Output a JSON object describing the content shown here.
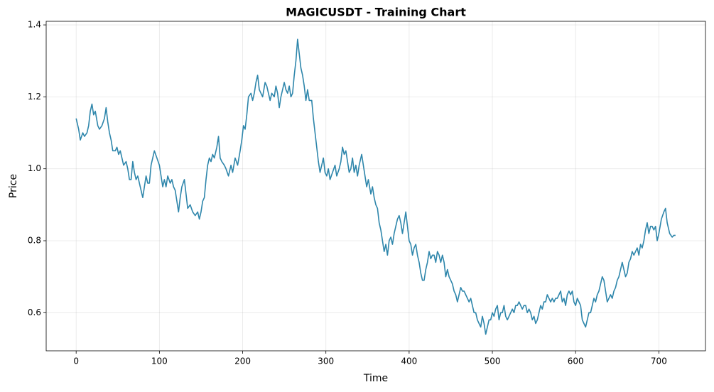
{
  "chart_data": {
    "type": "line",
    "title": "MAGICUSDT - Training Chart",
    "x_label": "Time",
    "y_label": "Price",
    "grid": true,
    "xlim": [
      -36,
      756
    ],
    "ylim": [
      0.494,
      1.41
    ],
    "xticks": [
      0,
      100,
      200,
      300,
      400,
      500,
      600,
      700
    ],
    "yticks": [
      0.6,
      0.8,
      {
        "value": 1.0,
        "label": "1.0"
      },
      1.2,
      1.4
    ],
    "x": [
      0,
      3,
      5,
      8,
      10,
      13,
      15,
      17,
      19,
      21,
      23,
      26,
      28,
      31,
      34,
      36,
      38,
      40,
      42,
      44,
      47,
      49,
      51,
      53,
      55,
      57,
      60,
      62,
      64,
      66,
      68,
      70,
      72,
      74,
      77,
      80,
      82,
      84,
      86,
      88,
      90,
      92,
      94,
      97,
      100,
      102,
      104,
      106,
      108,
      110,
      113,
      115,
      117,
      119,
      121,
      123,
      125,
      127,
      130,
      132,
      134,
      137,
      140,
      143,
      146,
      148,
      150,
      152,
      154,
      156,
      158,
      160,
      162,
      164,
      166,
      169,
      171,
      173,
      175,
      178,
      180,
      183,
      186,
      188,
      191,
      194,
      197,
      199,
      201,
      203,
      205,
      207,
      210,
      212,
      214,
      216,
      218,
      220,
      222,
      224,
      227,
      229,
      231,
      233,
      235,
      238,
      240,
      242,
      244,
      246,
      248,
      250,
      252,
      254,
      256,
      258,
      260,
      262,
      264,
      266,
      268,
      270,
      272,
      274,
      276,
      278,
      280,
      283,
      285,
      287,
      289,
      291,
      293,
      295,
      297,
      299,
      301,
      303,
      305,
      308,
      311,
      313,
      316,
      318,
      320,
      322,
      324,
      326,
      328,
      330,
      332,
      334,
      336,
      338,
      340,
      343,
      345,
      347,
      349,
      351,
      354,
      356,
      358,
      360,
      362,
      364,
      366,
      368,
      370,
      372,
      374,
      376,
      378,
      380,
      382,
      384,
      386,
      388,
      390,
      392,
      394,
      396,
      398,
      400,
      402,
      404,
      406,
      408,
      410,
      412,
      414,
      416,
      418,
      420,
      422,
      424,
      426,
      428,
      430,
      432,
      434,
      436,
      438,
      440,
      442,
      444,
      446,
      448,
      450,
      452,
      454,
      456,
      458,
      460,
      462,
      464,
      466,
      468,
      470,
      472,
      474,
      476,
      478,
      480,
      482,
      484,
      486,
      488,
      490,
      492,
      494,
      496,
      498,
      500,
      502,
      504,
      506,
      508,
      510,
      512,
      514,
      516,
      518,
      520,
      522,
      524,
      526,
      528,
      530,
      532,
      534,
      536,
      538,
      540,
      542,
      544,
      546,
      548,
      550,
      552,
      554,
      556,
      558,
      560,
      562,
      564,
      566,
      568,
      570,
      572,
      574,
      576,
      578,
      580,
      582,
      584,
      586,
      588,
      590,
      592,
      594,
      596,
      598,
      600,
      602,
      604,
      606,
      608,
      610,
      612,
      614,
      616,
      618,
      620,
      622,
      624,
      626,
      628,
      630,
      632,
      634,
      636,
      638,
      640,
      642,
      644,
      646,
      648,
      650,
      652,
      654,
      656,
      658,
      660,
      662,
      664,
      666,
      668,
      670,
      672,
      674,
      676,
      678,
      680,
      682,
      684,
      686,
      688,
      690,
      692,
      694,
      696,
      698,
      700,
      703,
      706,
      708,
      710,
      713,
      716,
      718,
      720
    ],
    "series": [
      {
        "color": "#2e86ab",
        "values": [
          1.14,
          1.11,
          1.08,
          1.1,
          1.09,
          1.1,
          1.12,
          1.16,
          1.18,
          1.15,
          1.16,
          1.12,
          1.11,
          1.12,
          1.14,
          1.17,
          1.13,
          1.1,
          1.08,
          1.05,
          1.05,
          1.06,
          1.04,
          1.05,
          1.03,
          1.01,
          1.02,
          1.0,
          0.97,
          0.97,
          1.02,
          0.99,
          0.97,
          0.98,
          0.95,
          0.92,
          0.95,
          0.98,
          0.96,
          0.96,
          1.01,
          1.03,
          1.05,
          1.03,
          1.01,
          0.98,
          0.95,
          0.97,
          0.95,
          0.98,
          0.96,
          0.97,
          0.95,
          0.94,
          0.91,
          0.88,
          0.92,
          0.95,
          0.97,
          0.93,
          0.89,
          0.9,
          0.88,
          0.87,
          0.88,
          0.86,
          0.88,
          0.91,
          0.92,
          0.97,
          1.01,
          1.03,
          1.02,
          1.04,
          1.03,
          1.06,
          1.09,
          1.03,
          1.02,
          1.01,
          1.0,
          0.98,
          1.01,
          0.99,
          1.03,
          1.01,
          1.05,
          1.08,
          1.12,
          1.11,
          1.15,
          1.2,
          1.21,
          1.19,
          1.21,
          1.24,
          1.26,
          1.22,
          1.21,
          1.2,
          1.24,
          1.23,
          1.21,
          1.19,
          1.21,
          1.2,
          1.23,
          1.21,
          1.17,
          1.2,
          1.22,
          1.24,
          1.22,
          1.21,
          1.23,
          1.2,
          1.21,
          1.26,
          1.3,
          1.36,
          1.32,
          1.28,
          1.26,
          1.23,
          1.19,
          1.22,
          1.19,
          1.19,
          1.14,
          1.1,
          1.06,
          1.02,
          0.99,
          1.01,
          1.03,
          0.99,
          0.98,
          1.0,
          0.97,
          0.99,
          1.01,
          0.98,
          1.0,
          1.02,
          1.06,
          1.04,
          1.05,
          1.02,
          0.99,
          1.0,
          1.03,
          0.99,
          1.01,
          0.98,
          1.01,
          1.04,
          1.01,
          0.98,
          0.95,
          0.97,
          0.93,
          0.95,
          0.92,
          0.9,
          0.89,
          0.85,
          0.83,
          0.8,
          0.77,
          0.79,
          0.76,
          0.8,
          0.81,
          0.79,
          0.82,
          0.84,
          0.86,
          0.87,
          0.85,
          0.82,
          0.85,
          0.88,
          0.84,
          0.8,
          0.79,
          0.76,
          0.78,
          0.79,
          0.76,
          0.74,
          0.71,
          0.69,
          0.69,
          0.72,
          0.74,
          0.77,
          0.75,
          0.76,
          0.76,
          0.74,
          0.77,
          0.76,
          0.74,
          0.76,
          0.74,
          0.7,
          0.72,
          0.7,
          0.69,
          0.68,
          0.66,
          0.65,
          0.63,
          0.65,
          0.67,
          0.66,
          0.66,
          0.65,
          0.64,
          0.63,
          0.64,
          0.62,
          0.6,
          0.6,
          0.58,
          0.57,
          0.56,
          0.59,
          0.57,
          0.54,
          0.56,
          0.58,
          0.58,
          0.6,
          0.59,
          0.61,
          0.62,
          0.58,
          0.6,
          0.6,
          0.62,
          0.59,
          0.58,
          0.59,
          0.6,
          0.61,
          0.6,
          0.62,
          0.62,
          0.63,
          0.62,
          0.61,
          0.62,
          0.62,
          0.6,
          0.61,
          0.6,
          0.58,
          0.59,
          0.57,
          0.58,
          0.6,
          0.62,
          0.61,
          0.63,
          0.63,
          0.65,
          0.64,
          0.63,
          0.64,
          0.63,
          0.64,
          0.64,
          0.65,
          0.66,
          0.63,
          0.64,
          0.62,
          0.65,
          0.66,
          0.65,
          0.66,
          0.63,
          0.62,
          0.64,
          0.63,
          0.62,
          0.58,
          0.57,
          0.56,
          0.58,
          0.6,
          0.6,
          0.62,
          0.64,
          0.63,
          0.65,
          0.66,
          0.68,
          0.7,
          0.69,
          0.66,
          0.63,
          0.64,
          0.65,
          0.64,
          0.66,
          0.67,
          0.69,
          0.7,
          0.72,
          0.74,
          0.72,
          0.7,
          0.71,
          0.74,
          0.75,
          0.77,
          0.76,
          0.77,
          0.78,
          0.76,
          0.79,
          0.78,
          0.8,
          0.83,
          0.85,
          0.82,
          0.84,
          0.84,
          0.83,
          0.84,
          0.8,
          0.82,
          0.86,
          0.88,
          0.89,
          0.85,
          0.82,
          0.81,
          0.815,
          0.815
        ]
      }
    ]
  }
}
